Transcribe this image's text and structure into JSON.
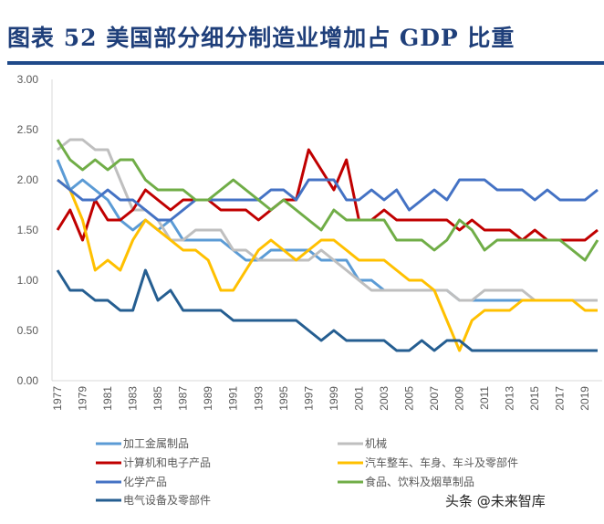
{
  "title": "图表 52 美国部分细分制造业增加占 GDP 比重",
  "watermark": "头条 @未来智库",
  "chart_data": {
    "type": "line",
    "title": "",
    "xlabel": "",
    "ylabel": "",
    "ylim": [
      0,
      3
    ],
    "yticks": [
      "0.00",
      "0.50",
      "1.00",
      "1.50",
      "2.00",
      "2.50",
      "3.00"
    ],
    "grid": false,
    "legend": "bottom",
    "x": [
      1977,
      1978,
      1979,
      1980,
      1981,
      1982,
      1983,
      1984,
      1985,
      1986,
      1987,
      1988,
      1989,
      1990,
      1991,
      1992,
      1993,
      1994,
      1995,
      1996,
      1997,
      1998,
      1999,
      2000,
      2001,
      2002,
      2003,
      2004,
      2005,
      2006,
      2007,
      2008,
      2009,
      2010,
      2011,
      2012,
      2013,
      2014,
      2015,
      2016,
      2017,
      2018,
      2019,
      2020
    ],
    "xticks": [
      "1977",
      "1979",
      "1981",
      "1983",
      "1985",
      "1987",
      "1989",
      "1991",
      "1993",
      "1995",
      "1997",
      "1999",
      "2001",
      "2003",
      "2005",
      "2007",
      "2009",
      "2011",
      "2013",
      "2015",
      "2017",
      "2019"
    ],
    "series": [
      {
        "name": "加工金属制品",
        "color": "#5B9BD5",
        "values": [
          2.2,
          1.9,
          2.0,
          1.9,
          1.8,
          1.6,
          1.5,
          1.6,
          1.5,
          1.6,
          1.4,
          1.4,
          1.4,
          1.4,
          1.3,
          1.2,
          1.2,
          1.3,
          1.3,
          1.3,
          1.3,
          1.2,
          1.2,
          1.2,
          1.0,
          1.0,
          0.9,
          0.9,
          0.9,
          0.9,
          0.9,
          0.9,
          0.8,
          0.8,
          0.8,
          0.8,
          0.8,
          0.8,
          0.8,
          0.8,
          0.8,
          0.8,
          0.8,
          0.8
        ]
      },
      {
        "name": "机械",
        "color": "#BFBFBF",
        "values": [
          2.3,
          2.4,
          2.4,
          2.3,
          2.3,
          2.0,
          1.7,
          1.7,
          1.6,
          1.4,
          1.4,
          1.5,
          1.5,
          1.5,
          1.3,
          1.3,
          1.2,
          1.2,
          1.2,
          1.2,
          1.2,
          1.3,
          1.2,
          1.1,
          1.0,
          0.9,
          0.9,
          0.9,
          0.9,
          0.9,
          0.9,
          0.9,
          0.8,
          0.8,
          0.9,
          0.9,
          0.9,
          0.9,
          0.8,
          0.8,
          0.8,
          0.8,
          0.8,
          0.8
        ]
      },
      {
        "name": "计算机和电子产品",
        "color": "#C00000",
        "values": [
          1.5,
          1.7,
          1.4,
          1.8,
          1.6,
          1.6,
          1.7,
          1.9,
          1.8,
          1.7,
          1.8,
          1.8,
          1.8,
          1.7,
          1.7,
          1.7,
          1.6,
          1.7,
          1.8,
          1.8,
          2.3,
          2.1,
          1.9,
          2.2,
          1.6,
          1.6,
          1.7,
          1.6,
          1.6,
          1.6,
          1.6,
          1.6,
          1.5,
          1.6,
          1.5,
          1.5,
          1.5,
          1.4,
          1.5,
          1.4,
          1.4,
          1.4,
          1.4,
          1.5
        ]
      },
      {
        "name": "汽车整车、车身、车斗及零部件",
        "color": "#FFC000",
        "values": [
          2.0,
          1.9,
          1.6,
          1.1,
          1.2,
          1.1,
          1.4,
          1.6,
          1.5,
          1.4,
          1.3,
          1.3,
          1.2,
          0.9,
          0.9,
          1.1,
          1.3,
          1.4,
          1.3,
          1.2,
          1.3,
          1.4,
          1.4,
          1.3,
          1.2,
          1.2,
          1.2,
          1.1,
          1.0,
          1.0,
          0.9,
          0.6,
          0.3,
          0.6,
          0.7,
          0.7,
          0.7,
          0.8,
          0.8,
          0.8,
          0.8,
          0.8,
          0.7,
          0.7
        ]
      },
      {
        "name": "化学产品",
        "color": "#4472C4",
        "values": [
          2.0,
          1.9,
          1.8,
          1.8,
          1.9,
          1.8,
          1.8,
          1.7,
          1.6,
          1.6,
          1.7,
          1.8,
          1.8,
          1.8,
          1.8,
          1.8,
          1.8,
          1.9,
          1.9,
          1.8,
          2.0,
          2.0,
          2.0,
          1.8,
          1.8,
          1.9,
          1.8,
          1.9,
          1.7,
          1.8,
          1.9,
          1.8,
          2.0,
          2.0,
          2.0,
          1.9,
          1.9,
          1.9,
          1.8,
          1.9,
          1.8,
          1.8,
          1.8,
          1.9
        ]
      },
      {
        "name": "食品、饮料及烟草制品",
        "color": "#70AD47",
        "values": [
          2.4,
          2.2,
          2.1,
          2.2,
          2.1,
          2.2,
          2.2,
          2.0,
          1.9,
          1.9,
          1.9,
          1.8,
          1.8,
          1.9,
          2.0,
          1.9,
          1.8,
          1.7,
          1.8,
          1.7,
          1.6,
          1.5,
          1.7,
          1.6,
          1.6,
          1.6,
          1.6,
          1.4,
          1.4,
          1.4,
          1.3,
          1.4,
          1.6,
          1.5,
          1.3,
          1.4,
          1.4,
          1.4,
          1.4,
          1.4,
          1.4,
          1.3,
          1.2,
          1.4
        ]
      },
      {
        "name": "电气设备及零部件",
        "color": "#255E91",
        "values": [
          1.1,
          0.9,
          0.9,
          0.8,
          0.8,
          0.7,
          0.7,
          1.1,
          0.8,
          0.9,
          0.7,
          0.7,
          0.7,
          0.7,
          0.6,
          0.6,
          0.6,
          0.6,
          0.6,
          0.6,
          0.5,
          0.4,
          0.5,
          0.4,
          0.4,
          0.4,
          0.4,
          0.3,
          0.3,
          0.4,
          0.3,
          0.4,
          0.4,
          0.3,
          0.3,
          0.3,
          0.3,
          0.3,
          0.3,
          0.3,
          0.3,
          0.3,
          0.3,
          0.3
        ]
      }
    ]
  }
}
